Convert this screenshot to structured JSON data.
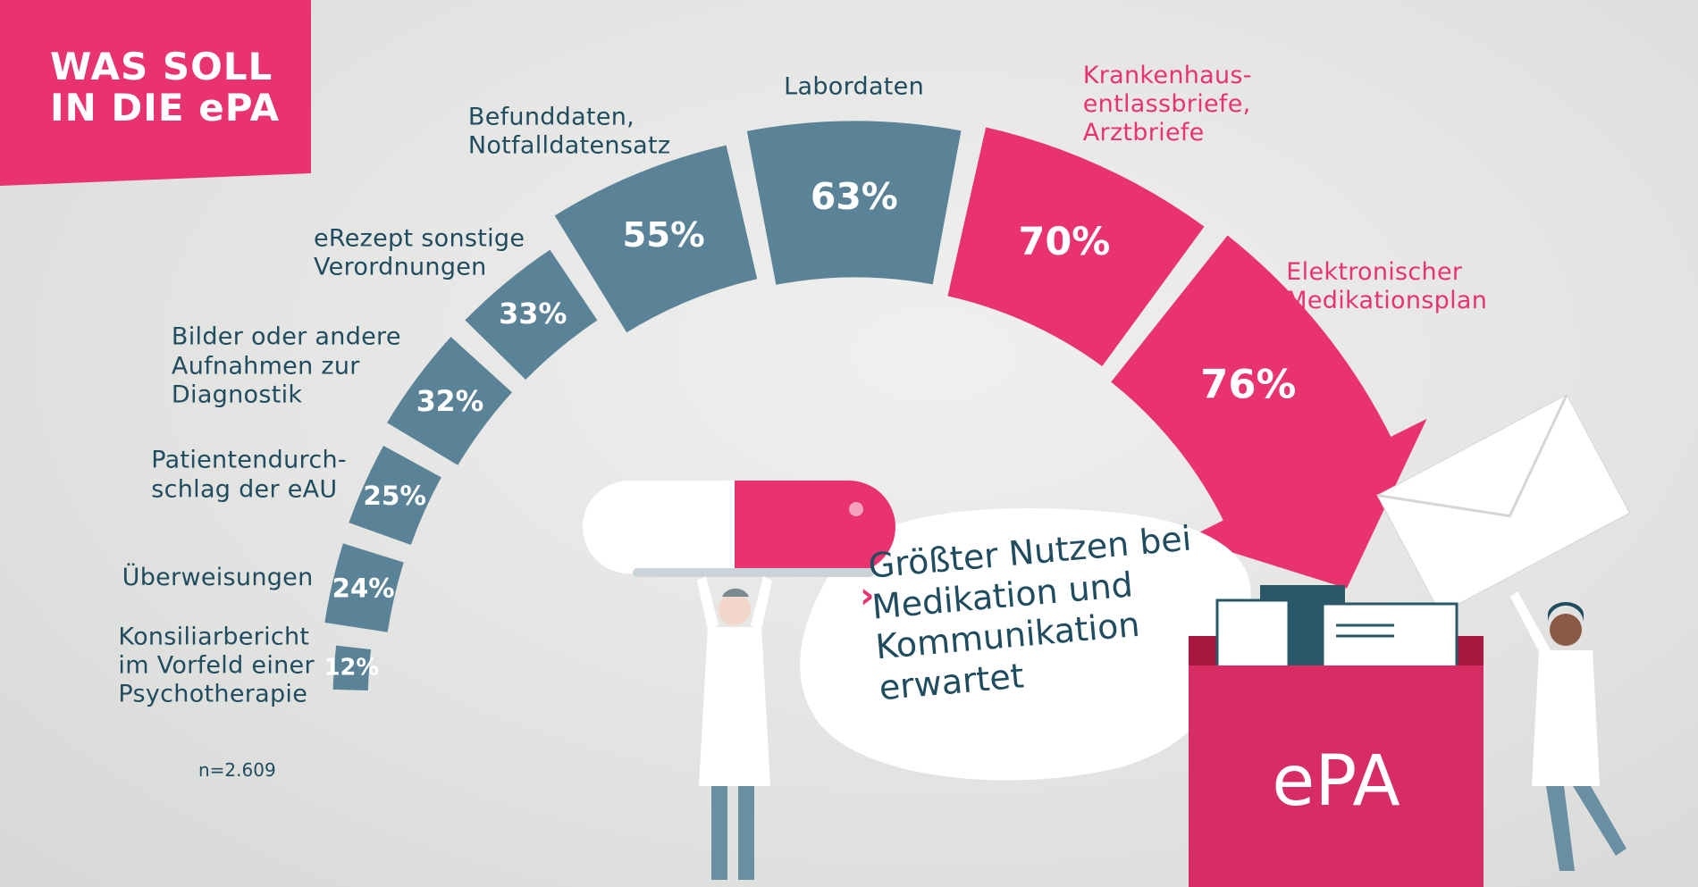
{
  "chart_data": {
    "type": "arc-bar",
    "title": "WAS SOLL\nIN DIE ePA",
    "categories": [
      "Konsiliarbericht\nim Vorfeld einer\nPsychotherapie",
      "Überweisungen",
      "Patientendurch-\nschlag der eAU",
      "Bilder oder andere\nAufnahmen zur\nDiagnostik",
      "eRezept sonstige\nVerordnungen",
      "Befunddaten,\nNotfalldatensatz",
      "Labordaten",
      "Krankenhaus-\nentlassbriefe,\nArztbriefe",
      "Elektronischer\nMedikationsplan"
    ],
    "values": [
      12,
      24,
      25,
      32,
      33,
      55,
      63,
      70,
      76
    ],
    "value_labels": [
      "12%",
      "24%",
      "25%",
      "32%",
      "33%",
      "55%",
      "63%",
      "70%",
      "76%"
    ],
    "colors": [
      "#5b8397",
      "#5b8397",
      "#5b8397",
      "#5b8397",
      "#5b8397",
      "#5b8397",
      "#5b8397",
      "#e8336f",
      "#e8336f"
    ],
    "label_colors": [
      "#1f4c5e",
      "#1f4c5e",
      "#1f4c5e",
      "#1f4c5e",
      "#1f4c5e",
      "#1f4c5e",
      "#1f4c5e",
      "#e8336f",
      "#e8336f"
    ],
    "note": "n=2.609",
    "callout": "Größter Nutzen bei\nMedikation und\nKommunikation\nerwartet",
    "folder_label": "ePA"
  }
}
